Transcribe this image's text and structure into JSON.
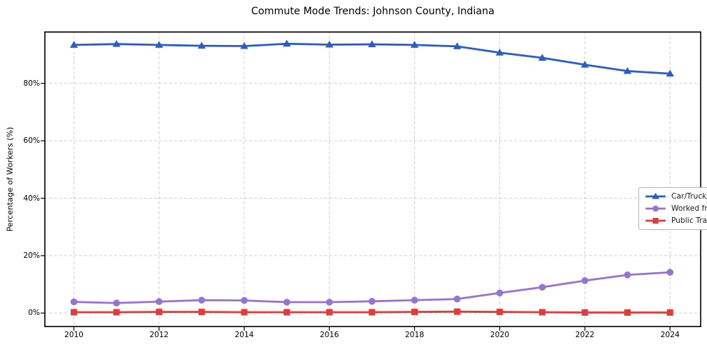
{
  "chart_data": {
    "type": "line",
    "title": "Commute Mode Trends: Johnson County, Indiana",
    "xlabel": "",
    "ylabel": "Percentage of Workers (%)",
    "x": [
      2010,
      2011,
      2012,
      2013,
      2014,
      2015,
      2016,
      2017,
      2018,
      2019,
      2020,
      2021,
      2022,
      2023,
      2024
    ],
    "x_ticks": [
      2010,
      2012,
      2014,
      2016,
      2018,
      2020,
      2022,
      2024
    ],
    "x_tick_labels": [
      "2010",
      "2012",
      "2014",
      "2016",
      "2018",
      "2020",
      "2022",
      "2024"
    ],
    "y_ticks": [
      0,
      20,
      40,
      60,
      80
    ],
    "y_tick_labels": [
      "0%",
      "20%",
      "40%",
      "60%",
      "80%"
    ],
    "xlim": [
      2009.304,
      2024.734
    ],
    "ylim": [
      -4.9,
      98.1
    ],
    "grid": true,
    "grid_style": "dashed",
    "legend_position": "center-right",
    "series": [
      {
        "name": "Car/Truck/Van",
        "color": "#2b5ec5",
        "marker": "triangle",
        "values": [
          93.4,
          93.7,
          93.4,
          93.1,
          93.0,
          93.8,
          93.5,
          93.6,
          93.4,
          92.9,
          90.7,
          88.9,
          86.5,
          84.3,
          83.4
        ]
      },
      {
        "name": "Worked from Home",
        "color": "#9674d4",
        "marker": "circle",
        "values": [
          3.9,
          3.5,
          4.0,
          4.5,
          4.4,
          3.8,
          3.8,
          4.1,
          4.5,
          4.9,
          7.0,
          9.0,
          11.3,
          13.3,
          14.2
        ]
      },
      {
        "name": "Public Transportation",
        "color": "#e23b3b",
        "marker": "square",
        "values": [
          0.3,
          0.3,
          0.4,
          0.4,
          0.3,
          0.3,
          0.3,
          0.3,
          0.4,
          0.5,
          0.4,
          0.3,
          0.2,
          0.2,
          0.2
        ]
      }
    ],
    "colors": {
      "grid": "#cfcfcf",
      "spine": "#000000",
      "tick_label": "#000000",
      "legend_border": "#b3b3b3",
      "legend_bg": "#ffffff"
    }
  }
}
